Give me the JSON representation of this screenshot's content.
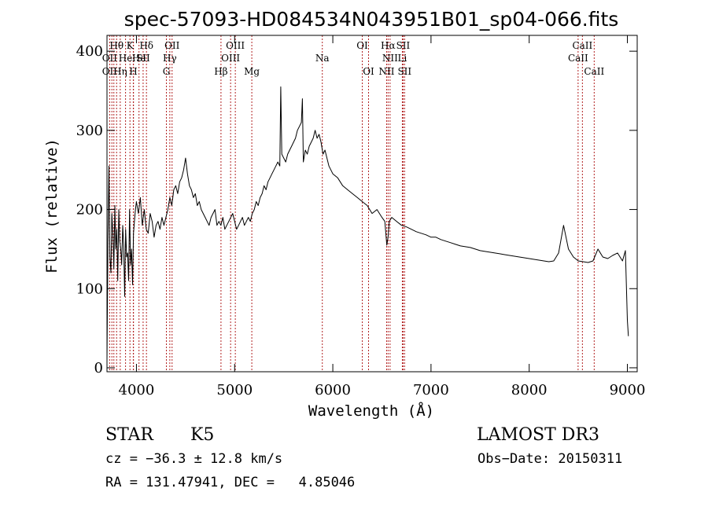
{
  "chart_data": {
    "type": "line",
    "title": "spec-57093-HD084534N043951B01_sp04-066.fits",
    "xlabel": "Wavelength (Å)",
    "ylabel": "Flux (relative)",
    "xlim": [
      3700,
      9100
    ],
    "ylim": [
      -5,
      420
    ],
    "xticks": [
      4000,
      5000,
      6000,
      7000,
      8000,
      9000
    ],
    "yticks": [
      0,
      100,
      200,
      300,
      400
    ],
    "grid": false,
    "series": [
      {
        "x": [
          3700,
          3710,
          3720,
          3730,
          3740,
          3750,
          3760,
          3770,
          3780,
          3790,
          3800,
          3810,
          3820,
          3830,
          3840,
          3850,
          3860,
          3870,
          3880,
          3890,
          3900,
          3910,
          3920,
          3930,
          3940,
          3950,
          3960,
          3970,
          3980,
          3990,
          4000,
          4020,
          4040,
          4060,
          4080,
          4100,
          4120,
          4140,
          4160,
          4180,
          4200,
          4220,
          4240,
          4260,
          4280,
          4300,
          4320,
          4340,
          4360,
          4380,
          4400,
          4420,
          4440,
          4460,
          4480,
          4500,
          4520,
          4540,
          4560,
          4580,
          4600,
          4620,
          4640,
          4660,
          4680,
          4700,
          4720,
          4740,
          4760,
          4780,
          4800,
          4820,
          4840,
          4860,
          4880,
          4900,
          4920,
          4940,
          4960,
          4980,
          5000,
          5020,
          5040,
          5060,
          5080,
          5100,
          5120,
          5140,
          5160,
          5180,
          5200,
          5220,
          5240,
          5260,
          5280,
          5300,
          5320,
          5340,
          5360,
          5380,
          5400,
          5420,
          5440,
          5460,
          5470,
          5480,
          5500,
          5520,
          5540,
          5560,
          5580,
          5600,
          5620,
          5640,
          5660,
          5680,
          5690,
          5700,
          5720,
          5740,
          5760,
          5780,
          5800,
          5820,
          5840,
          5860,
          5880,
          5900,
          5920,
          5940,
          5960,
          5980,
          6000,
          6050,
          6100,
          6150,
          6200,
          6250,
          6300,
          6350,
          6400,
          6450,
          6500,
          6530,
          6550,
          6563,
          6575,
          6600,
          6650,
          6700,
          6750,
          6800,
          6850,
          6900,
          6950,
          7000,
          7050,
          7100,
          7150,
          7200,
          7250,
          7300,
          7350,
          7400,
          7450,
          7500,
          7550,
          7600,
          7650,
          7700,
          7750,
          7800,
          7850,
          7900,
          7950,
          8000,
          8050,
          8100,
          8150,
          8200,
          8250,
          8300,
          8350,
          8400,
          8450,
          8500,
          8550,
          8600,
          8650,
          8700,
          8750,
          8800,
          8850,
          8900,
          8950,
          8980,
          9000,
          9010
        ],
        "y": [
          10,
          160,
          255,
          140,
          120,
          195,
          170,
          125,
          205,
          150,
          175,
          110,
          200,
          160,
          150,
          130,
          180,
          155,
          90,
          175,
          140,
          145,
          110,
          200,
          130,
          150,
          105,
          170,
          185,
          200,
          210,
          195,
          215,
          180,
          200,
          175,
          170,
          195,
          185,
          165,
          180,
          185,
          175,
          190,
          180,
          190,
          200,
          215,
          205,
          225,
          230,
          220,
          235,
          240,
          250,
          265,
          245,
          230,
          225,
          215,
          220,
          205,
          210,
          200,
          195,
          190,
          185,
          180,
          190,
          195,
          200,
          180,
          185,
          180,
          190,
          175,
          180,
          185,
          190,
          195,
          185,
          175,
          180,
          185,
          190,
          180,
          185,
          190,
          185,
          195,
          200,
          210,
          205,
          215,
          220,
          230,
          225,
          235,
          240,
          245,
          250,
          255,
          260,
          255,
          355,
          270,
          265,
          260,
          270,
          275,
          280,
          285,
          290,
          300,
          305,
          310,
          340,
          260,
          275,
          270,
          280,
          285,
          290,
          300,
          290,
          295,
          285,
          270,
          275,
          265,
          255,
          250,
          245,
          240,
          230,
          225,
          220,
          215,
          210,
          205,
          195,
          200,
          190,
          185,
          155,
          165,
          185,
          190,
          185,
          180,
          178,
          175,
          172,
          170,
          168,
          165,
          165,
          162,
          160,
          158,
          156,
          154,
          153,
          152,
          150,
          148,
          147,
          146,
          145,
          144,
          143,
          142,
          141,
          140,
          139,
          138,
          137,
          136,
          135,
          134,
          135,
          145,
          180,
          150,
          140,
          135,
          134,
          133,
          135,
          150,
          140,
          138,
          142,
          145,
          135,
          148,
          60,
          40
        ]
      }
    ],
    "lines": {
      "wavelengths": [
        3727,
        3750,
        3770,
        3798,
        3835,
        3889,
        3934,
        3968,
        3970,
        4102,
        4026,
        4068,
        4305,
        4340,
        4363,
        4861,
        4959,
        5007,
        5175,
        5893,
        6300,
        6364,
        6548,
        6563,
        6583,
        6708,
        6716,
        6731,
        8498,
        8542,
        8662
      ],
      "labels": [
        {
          "text": "Hθ",
          "x": 3798,
          "row": 1
        },
        {
          "text": "K",
          "x": 3934,
          "row": 1
        },
        {
          "text": "Hδ",
          "x": 4102,
          "row": 1
        },
        {
          "text": "OII",
          "x": 4363,
          "row": 1
        },
        {
          "text": "OIII",
          "x": 5007,
          "row": 1
        },
        {
          "text": "OI",
          "x": 6300,
          "row": 1
        },
        {
          "text": "Hα",
          "x": 6563,
          "row": 1
        },
        {
          "text": "SII",
          "x": 6716,
          "row": 1
        },
        {
          "text": "CaII",
          "x": 8542,
          "row": 1
        },
        {
          "text": "OII",
          "x": 3727,
          "row": 2
        },
        {
          "text": "He",
          "x": 3889,
          "row": 2
        },
        {
          "text": "He",
          "x": 4026,
          "row": 2
        },
        {
          "text": "SII",
          "x": 4068,
          "row": 2
        },
        {
          "text": "Hγ",
          "x": 4340,
          "row": 2
        },
        {
          "text": "OIII",
          "x": 4959,
          "row": 2
        },
        {
          "text": "Na",
          "x": 5893,
          "row": 2
        },
        {
          "text": "NII",
          "x": 6583,
          "row": 2
        },
        {
          "text": "Li",
          "x": 6708,
          "row": 2
        },
        {
          "text": "CaII",
          "x": 8498,
          "row": 2
        },
        {
          "text": "OII",
          "x": 3727,
          "row": 3
        },
        {
          "text": "Hη",
          "x": 3835,
          "row": 3
        },
        {
          "text": "H",
          "x": 3968,
          "row": 3
        },
        {
          "text": "G",
          "x": 4305,
          "row": 3
        },
        {
          "text": "Hβ",
          "x": 4861,
          "row": 3
        },
        {
          "text": "Mg",
          "x": 5175,
          "row": 3
        },
        {
          "text": "OI",
          "x": 6364,
          "row": 3
        },
        {
          "text": "NII",
          "x": 6548,
          "row": 3
        },
        {
          "text": "SII",
          "x": 6731,
          "row": 3
        },
        {
          "text": "CaII",
          "x": 8662,
          "row": 3
        }
      ]
    }
  },
  "info": {
    "class_label": "STAR",
    "subclass": "K5",
    "survey": "LAMOST DR3",
    "cz": "cz = −36.3 ± 12.8 km/s",
    "obs_date": "Obs−Date: 20150311",
    "coords": "RA = 131.47941, DEC =   4.85046"
  },
  "colors": {
    "spectrum": "#000000",
    "marker_lines": "#b22222",
    "frame": "#000000"
  }
}
